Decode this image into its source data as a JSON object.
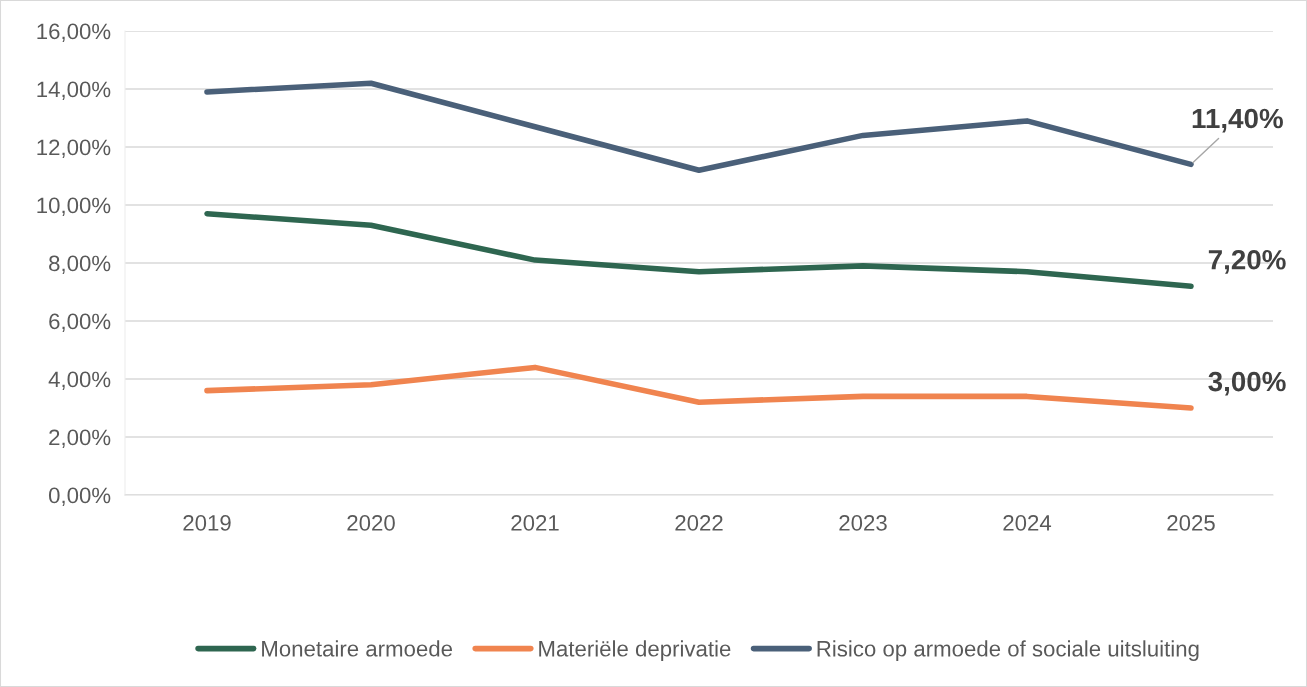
{
  "chart_data": {
    "type": "line",
    "categories": [
      "2019",
      "2020",
      "2021",
      "2022",
      "2023",
      "2024",
      "2025"
    ],
    "series": [
      {
        "name": "Monetaire armoede",
        "color": "#2e6650",
        "values": [
          9.7,
          9.3,
          8.1,
          7.7,
          7.9,
          7.7,
          7.2
        ],
        "value_labels": [
          null,
          null,
          null,
          null,
          null,
          null,
          "7,20%"
        ]
      },
      {
        "name": "Materiële deprivatie",
        "color": "#f0844f",
        "values": [
          3.6,
          3.8,
          4.4,
          3.2,
          3.4,
          3.4,
          3.0
        ],
        "value_labels": [
          null,
          null,
          null,
          null,
          null,
          null,
          "3,00%"
        ]
      },
      {
        "name": "Risico op armoede of sociale uitsluiting",
        "color": "#4a6079",
        "values": [
          13.9,
          14.2,
          12.7,
          11.2,
          12.4,
          12.9,
          11.4
        ],
        "value_labels": [
          null,
          null,
          null,
          null,
          null,
          null,
          "11,40%"
        ]
      }
    ],
    "ylim": [
      0,
      16
    ],
    "yticks": [
      {
        "value": 0,
        "label": "0,00%"
      },
      {
        "value": 2,
        "label": "2,00%"
      },
      {
        "value": 4,
        "label": "4,00%"
      },
      {
        "value": 6,
        "label": "6,00%"
      },
      {
        "value": 8,
        "label": "8,00%"
      },
      {
        "value": 10,
        "label": "10,00%"
      },
      {
        "value": 12,
        "label": "12,00%"
      },
      {
        "value": 14,
        "label": "14,00%"
      },
      {
        "value": 16,
        "label": "16,00%"
      }
    ],
    "grid": "y",
    "legend": "bottom",
    "marker": "none",
    "line_style": "solid"
  }
}
